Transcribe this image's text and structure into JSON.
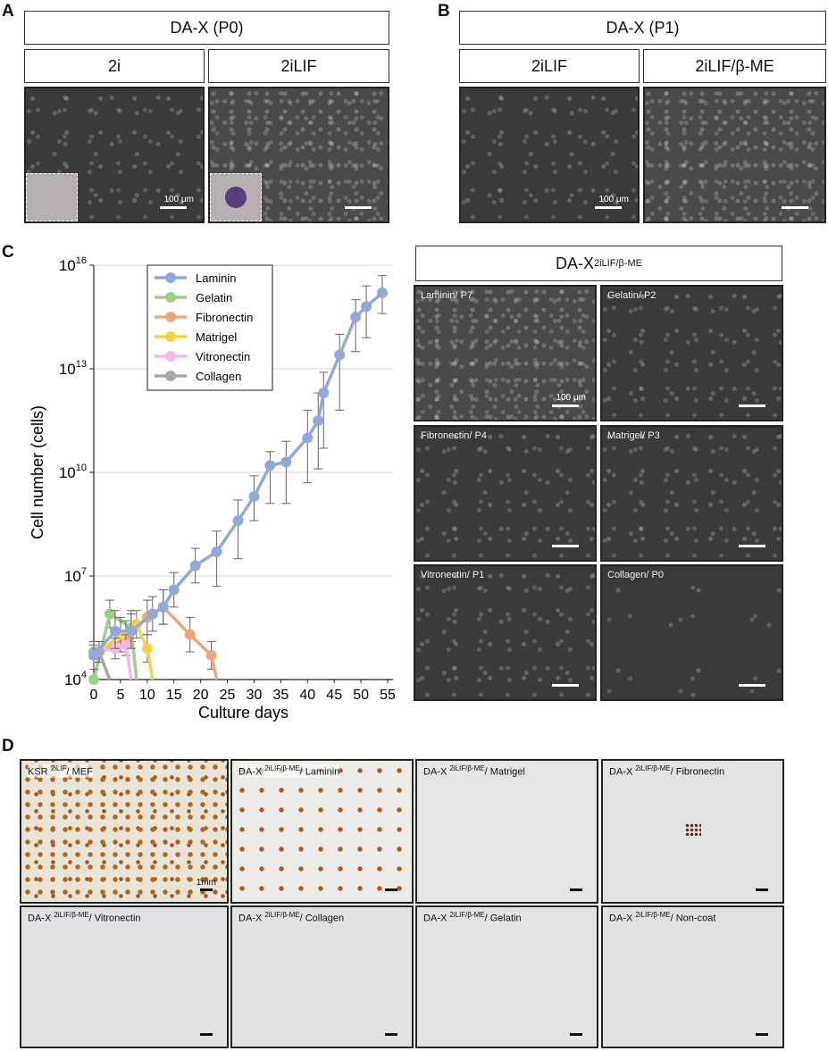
{
  "panels": {
    "A": {
      "letter": "A",
      "header": "DA-X (P0)",
      "conditions": [
        "2i",
        "2iLIF"
      ],
      "scale_label": "100 μm"
    },
    "B": {
      "letter": "B",
      "header": "DA-X (P1)",
      "conditions": [
        "2iLIF",
        "2iLIF/β-ME"
      ],
      "scale_label": "100 μm"
    },
    "C": {
      "letter": "C",
      "micro_header_main": "DA-X",
      "micro_header_sup": "2iLIF/β-ME",
      "images": [
        "Laminin/ P7",
        "Gelatin/ P2",
        "Fibronectin/ P4",
        "Matrigel/ P3",
        "Vitronectin/ P1",
        "Collagen/ P0"
      ],
      "scale_label": "100 μm"
    },
    "D": {
      "letter": "D",
      "scale_label": "1mm",
      "dishes": [
        {
          "pre": "KSR ",
          "sup": "2iLIF",
          "post": "/ MEF"
        },
        {
          "pre": "DA-X ",
          "sup": "2iLIF/β-ME",
          "post": "/ Laminin"
        },
        {
          "pre": "DA-X ",
          "sup": "2iLIF/β-ME",
          "post": "/ Matrigel"
        },
        {
          "pre": "DA-X ",
          "sup": "2iLIF/β-ME",
          "post": "/ Fibronectin"
        },
        {
          "pre": "DA-X ",
          "sup": "2iLIF/β-ME",
          "post": "/ Vitronectin"
        },
        {
          "pre": "DA-X ",
          "sup": "2iLIF/β-ME",
          "post": "/ Collagen"
        },
        {
          "pre": "DA-X ",
          "sup": "2iLIF/β-ME",
          "post": "/ Gelatin"
        },
        {
          "pre": "DA-X ",
          "sup": "2iLIF/β-ME",
          "post": "/ Non-coat"
        }
      ]
    }
  },
  "chart_data": {
    "type": "line",
    "xlabel": "Culture days",
    "ylabel": "Cell number (cells)",
    "ylog": true,
    "ylim_exp": [
      4,
      16
    ],
    "ytick_exps": [
      4,
      7,
      10,
      13,
      16
    ],
    "xlim": [
      0,
      56
    ],
    "xticks": [
      0,
      5,
      10,
      15,
      20,
      25,
      30,
      35,
      40,
      45,
      50,
      55
    ],
    "grid": "horizontal",
    "legend_position": "top-left",
    "series": [
      {
        "name": "Laminin",
        "color": "#8ea9dc",
        "x": [
          0,
          4,
          7,
          11,
          13,
          15,
          19,
          23,
          27,
          30,
          33,
          36,
          40,
          42,
          43,
          46,
          49,
          51,
          54
        ],
        "y_exp": [
          4.7,
          5.4,
          5.4,
          5.9,
          6.1,
          6.6,
          7.3,
          7.7,
          8.6,
          9.3,
          10.2,
          10.3,
          11.0,
          11.5,
          12.3,
          13.4,
          14.5,
          14.8,
          15.2
        ],
        "err_up": [
          0.4,
          0.6,
          0.6,
          0.5,
          0.5,
          0.5,
          0.5,
          0.6,
          0.6,
          0.6,
          0.4,
          0.6,
          0.8,
          0.8,
          0.6,
          0.6,
          0.5,
          0.6,
          0.5
        ],
        "err_down": [
          0.4,
          0.5,
          0.5,
          0.5,
          0.5,
          0.5,
          0.5,
          1.0,
          1.1,
          0.7,
          1.1,
          1.2,
          1.3,
          1.4,
          1.6,
          1.6,
          1.0,
          0.9,
          0.6
        ]
      },
      {
        "name": "Gelatin",
        "color": "#9fd08a",
        "x": [
          0,
          3,
          7,
          8
        ],
        "y_exp": [
          4.0,
          5.9,
          5.5,
          4.0
        ],
        "err_up": [
          0,
          0.4,
          0.4,
          0
        ],
        "err_down": [
          0,
          0.4,
          0.4,
          0
        ]
      },
      {
        "name": "Fibronectin",
        "color": "#f0a878",
        "x": [
          1,
          6,
          10,
          13,
          18,
          22,
          23
        ],
        "y_exp": [
          4.8,
          5.2,
          5.8,
          6.1,
          5.3,
          4.7,
          4.0
        ],
        "err_up": [
          0.3,
          0.5,
          0.5,
          0.5,
          0.5,
          0.4,
          0
        ],
        "err_down": [
          0.3,
          0.5,
          0.5,
          0.5,
          0.5,
          0.4,
          0
        ]
      },
      {
        "name": "Matrigel",
        "color": "#f7d04c",
        "x": [
          1,
          5,
          8,
          10,
          11
        ],
        "y_exp": [
          4.8,
          5.3,
          5.6,
          4.9,
          4.0
        ],
        "err_up": [
          0.3,
          0.5,
          0.4,
          0.4,
          0
        ],
        "err_down": [
          0.3,
          0.5,
          0.4,
          0.4,
          0
        ]
      },
      {
        "name": "Vitronectin",
        "color": "#f5b8e8",
        "x": [
          0,
          4,
          6,
          7
        ],
        "y_exp": [
          4.8,
          4.9,
          5.0,
          4.0
        ],
        "err_up": [
          0.2,
          0.3,
          0.3,
          0
        ],
        "err_down": [
          0.2,
          0.3,
          0.3,
          0
        ]
      },
      {
        "name": "Collagen",
        "color": "#a9a9a9",
        "x": [
          0,
          1,
          3
        ],
        "y_exp": [
          4.8,
          4.8,
          4.0
        ],
        "err_up": [
          0,
          0,
          0
        ],
        "err_down": [
          0,
          0,
          0
        ]
      }
    ]
  }
}
